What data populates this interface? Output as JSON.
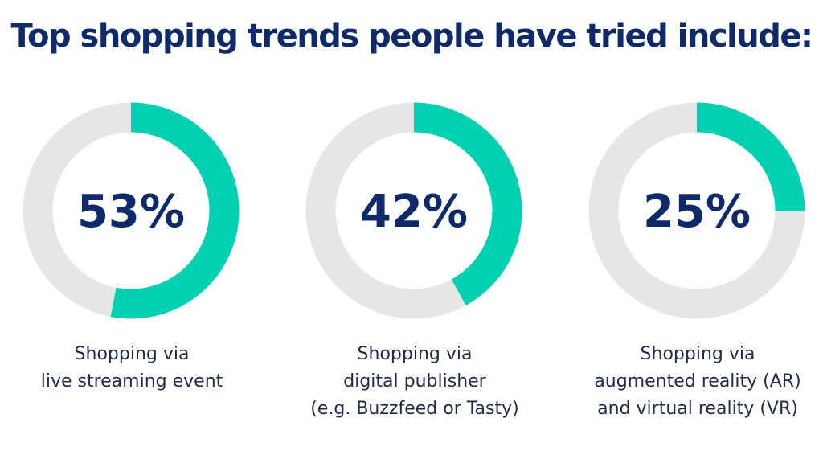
{
  "title": "Top shopping trends people have tried include:",
  "colors": {
    "accent": "#00d1b2",
    "track": "#e6e6e6",
    "text_dark": "#0f2a6b",
    "caption": "#1d2b4f"
  },
  "chart_data": [
    {
      "type": "pie",
      "variant": "donut",
      "value": 53,
      "label": "53%",
      "caption_lines": [
        "Shopping via",
        "live streaming event"
      ]
    },
    {
      "type": "pie",
      "variant": "donut",
      "value": 42,
      "label": "42%",
      "caption_lines": [
        "Shopping via",
        "digital publisher",
        "(e.g. Buzzfeed or Tasty)"
      ]
    },
    {
      "type": "pie",
      "variant": "donut",
      "value": 25,
      "label": "25%",
      "caption_lines": [
        "Shopping via",
        "augmented reality (AR)",
        "and virtual reality (VR)"
      ]
    }
  ]
}
